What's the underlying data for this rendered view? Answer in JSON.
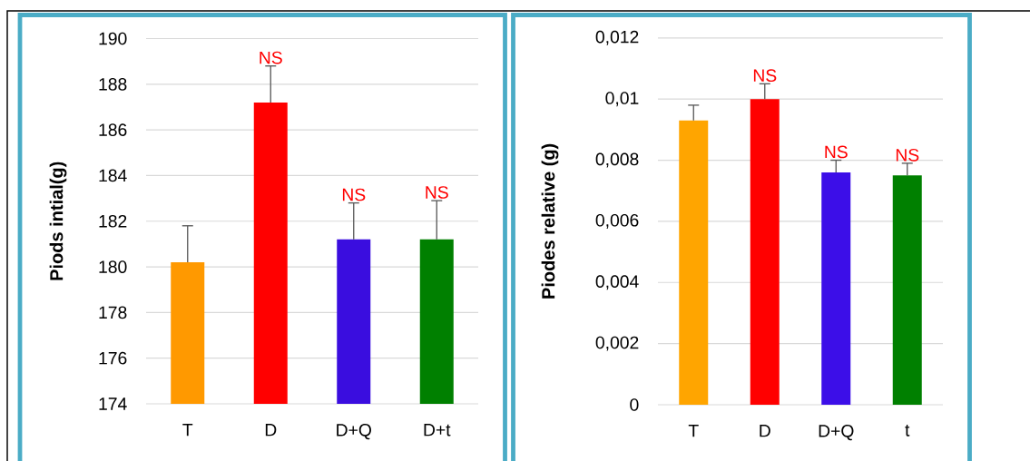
{
  "chart_data": [
    {
      "type": "bar",
      "ylabel": "Piods intial(g)",
      "categories": [
        "T",
        "D",
        "D+Q",
        "D+t"
      ],
      "values": [
        180.2,
        187.2,
        181.2,
        181.2
      ],
      "colors": [
        "#ff9900",
        "#ff0000",
        "#3a0ddf",
        "#008000"
      ],
      "errors": [
        [
          180.2,
          181.8
        ],
        [
          187.2,
          188.8
        ],
        [
          181.2,
          182.8
        ],
        [
          181.2,
          182.9
        ]
      ],
      "ylim": [
        174,
        190
      ],
      "yticks": [
        174,
        176,
        178,
        180,
        182,
        184,
        186,
        188,
        190
      ],
      "grid": "y",
      "annotations": [
        {
          "text": "NS",
          "x": "D",
          "y": 188.8
        },
        {
          "text": "NS",
          "x": "D+Q",
          "y": 182.8
        },
        {
          "text": "NS",
          "x": "D+t",
          "y": 182.9
        }
      ]
    },
    {
      "type": "bar",
      "ylabel": "Piodes relative (g)",
      "categories": [
        "T",
        "D",
        "D+Q",
        "t"
      ],
      "values": [
        0.0093,
        0.01,
        0.0076,
        0.0075
      ],
      "colors": [
        "#ffa500",
        "#ff0000",
        "#3c0ee8",
        "#008000"
      ],
      "errors": [
        [
          0.0093,
          0.0098
        ],
        [
          0.01,
          0.0105
        ],
        [
          0.0076,
          0.008
        ],
        [
          0.0075,
          0.0079
        ]
      ],
      "ylim": [
        0,
        0.012
      ],
      "yticks": [
        0,
        {
          "value": 0.002,
          "label": "0,002"
        },
        {
          "value": 0.004,
          "label": "0,004"
        },
        {
          "value": 0.006,
          "label": "0,006"
        },
        {
          "value": 0.008,
          "label": "0,008"
        },
        {
          "value": 0.01,
          "label": "0,01"
        },
        {
          "value": 0.012,
          "label": "0,012"
        }
      ],
      "grid": "y",
      "annotations": [
        {
          "text": "NS",
          "x": "D",
          "y": 0.0105
        },
        {
          "text": "NS",
          "x": "D+Q",
          "y": 0.008
        },
        {
          "text": "NS",
          "x": "t",
          "y": 0.0079
        }
      ]
    }
  ]
}
